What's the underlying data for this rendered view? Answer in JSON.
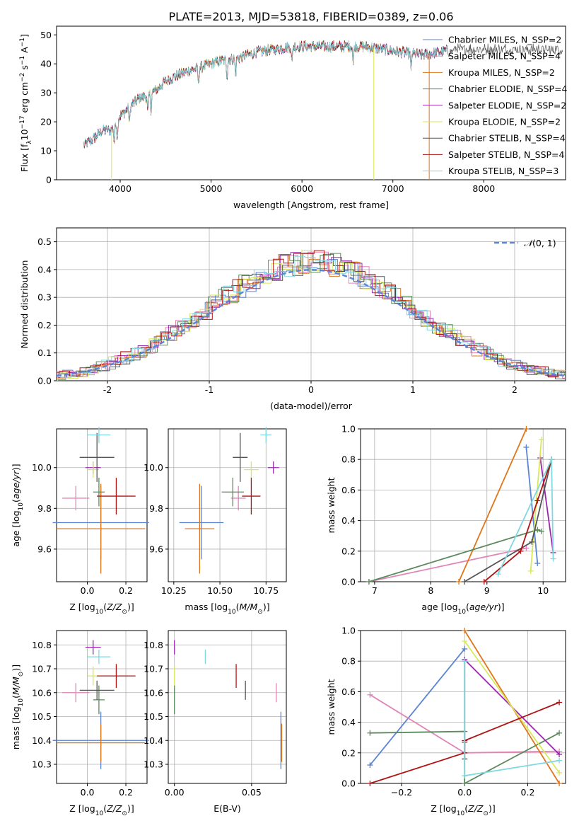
{
  "figure_title": "PLATE=2013, MJD=53818, FIBERID=0389, z=0.06",
  "colors": {
    "Chabrier MILES": "#5b84d4",
    "Salpeter MILES": "#e085b8",
    "Kroupa MILES": "#e0761a",
    "Chabrier ELODIE": "#5c8a5c",
    "Salpeter ELODIE": "#9b27b0",
    "Kroupa ELODIE": "#d8e85a",
    "Chabrier STELIB": "#555555",
    "Salpeter STELIB": "#b01515",
    "Kroupa STELIB": "#80d8e0"
  },
  "chart_data": [
    {
      "id": "spectrum",
      "type": "line",
      "xlabel": "wavelength [Angstrom, rest frame]",
      "ylabel": "Flux [f_λ10^-17 erg cm^-2 s^-1 A^-1]",
      "xlim": [
        3300,
        8900
      ],
      "ylim": [
        0,
        53
      ],
      "xticks": [
        4000,
        5000,
        6000,
        7000,
        8000
      ],
      "yticks": [
        0,
        10,
        20,
        30,
        40,
        50
      ],
      "grid": false,
      "legend_position": "right",
      "series": [
        {
          "name": "Chabrier MILES, N_SSP=2"
        },
        {
          "name": "Salpeter MILES, N_SSP=4"
        },
        {
          "name": "Kroupa MILES, N_SSP=2"
        },
        {
          "name": "Chabrier ELODIE, N_SSP=4"
        },
        {
          "name": "Salpeter ELODIE, N_SSP=2"
        },
        {
          "name": "Kroupa ELODIE, N_SSP=2"
        },
        {
          "name": "Chabrier STELIB, N_SSP=4"
        },
        {
          "name": "Salpeter STELIB, N_SSP=4"
        },
        {
          "name": "Kroupa STELIB, N_SSP=3"
        }
      ],
      "continuum": {
        "x": [
          3600,
          3700,
          3800,
          3900,
          4000,
          4100,
          4200,
          4300,
          4400,
          4500,
          4700,
          4900,
          5100,
          5300,
          5500,
          5700,
          5900,
          6100,
          6300,
          6500,
          6700,
          6900,
          7100,
          7300,
          7500,
          7700,
          7900,
          8200,
          8600,
          8870
        ],
        "y": [
          12,
          14,
          17,
          17,
          22,
          25,
          28,
          29,
          31,
          34,
          37,
          39,
          41,
          42,
          44,
          45,
          46,
          46,
          46,
          46,
          46,
          45,
          44,
          43,
          44,
          45,
          45,
          45,
          45,
          45
        ]
      },
      "model_ranges": [
        [
          3600,
          7600
        ],
        [
          3600,
          7600
        ],
        [
          3600,
          7400
        ],
        [
          3600,
          7600
        ],
        [
          3600,
          7600
        ],
        [
          3900,
          6800
        ],
        [
          3600,
          8870
        ],
        [
          3600,
          7600
        ],
        [
          3600,
          7600
        ]
      ]
    },
    {
      "id": "residuals",
      "type": "histogram",
      "xlabel": "(data-model)/error",
      "ylabel": "Normed distribution",
      "xlim": [
        -2.5,
        2.5
      ],
      "ylim": [
        0,
        0.55
      ],
      "xticks": [
        -2,
        -1,
        0,
        1,
        2
      ],
      "yticks": [
        0.0,
        0.1,
        0.2,
        0.3,
        0.4,
        0.5
      ],
      "grid": true,
      "legend_position": "top-right",
      "reference_curve": {
        "name": "N(0,1)",
        "mean": 0,
        "sigma": 1,
        "style": "dashed",
        "color": "#5b84d4"
      }
    },
    {
      "id": "age-vs-Z",
      "type": "errorbar",
      "xlabel": "Z [log10(Z/Z⊙)]",
      "ylabel": "age  [log10(age/yr)]",
      "xlim": [
        -0.16,
        0.31
      ],
      "ylim": [
        9.44,
        10.19
      ],
      "xticks": [
        0.0,
        0.2
      ],
      "yticks": [
        9.6,
        9.8,
        10.0
      ],
      "grid": true,
      "points": [
        {
          "x": 0.07,
          "xerr": 0.25,
          "y": 9.73,
          "yerr": 0.18
        },
        {
          "x": -0.06,
          "xerr": 0.07,
          "y": 9.85,
          "yerr": 0.06
        },
        {
          "x": 0.07,
          "xerr": 0.23,
          "y": 9.7,
          "yerr": 0.22
        },
        {
          "x": 0.06,
          "xerr": 0.03,
          "y": 9.88,
          "yerr": 0.07
        },
        {
          "x": 0.03,
          "xerr": 0.04,
          "y": 10.0,
          "yerr": 0.03
        },
        {
          "x": 0.03,
          "xerr": 0.03,
          "y": 9.99,
          "yerr": 0.04
        },
        {
          "x": 0.05,
          "xerr": 0.09,
          "y": 10.05,
          "yerr": 0.12
        },
        {
          "x": 0.15,
          "xerr": 0.1,
          "y": 9.86,
          "yerr": 0.09
        },
        {
          "x": 0.06,
          "xerr": 0.06,
          "y": 10.16,
          "yerr": 0.04
        }
      ]
    },
    {
      "id": "age-vs-mass",
      "type": "errorbar",
      "xlabel": "mass [log10(M/M⊙)]",
      "ylabel": "",
      "xlim": [
        10.22,
        10.86
      ],
      "ylim": [
        9.44,
        10.19
      ],
      "xticks": [
        10.25,
        10.5,
        10.75
      ],
      "yticks": [
        9.6,
        9.8,
        10.0
      ],
      "grid": true,
      "points": [
        {
          "x": 10.4,
          "xerr": 0.12,
          "y": 9.73,
          "yerr": 0.18
        },
        {
          "x": 10.6,
          "xerr": 0.04,
          "y": 9.85,
          "yerr": 0.06
        },
        {
          "x": 10.39,
          "xerr": 0.08,
          "y": 9.7,
          "yerr": 0.22
        },
        {
          "x": 10.57,
          "xerr": 0.06,
          "y": 9.88,
          "yerr": 0.07
        },
        {
          "x": 10.79,
          "xerr": 0.03,
          "y": 10.0,
          "yerr": 0.03
        },
        {
          "x": 10.67,
          "xerr": 0.04,
          "y": 9.99,
          "yerr": 0.04
        },
        {
          "x": 10.61,
          "xerr": 0.04,
          "y": 10.05,
          "yerr": 0.12
        },
        {
          "x": 10.67,
          "xerr": 0.05,
          "y": 9.86,
          "yerr": 0.09
        },
        {
          "x": 10.75,
          "xerr": 0.03,
          "y": 10.16,
          "yerr": 0.04
        }
      ]
    },
    {
      "id": "weight-vs-age",
      "type": "line",
      "xlabel": "age  [log10(age/yr)]",
      "ylabel": "mass weight",
      "xlim": [
        6.75,
        10.4
      ],
      "ylim": [
        0,
        1
      ],
      "xticks": [
        7,
        8,
        9,
        10
      ],
      "yticks": [
        0.0,
        0.2,
        0.4,
        0.6,
        0.8,
        1.0
      ],
      "grid": true,
      "series": [
        {
          "x": [
            9.7,
            9.9
          ],
          "y": [
            0.88,
            0.12
          ]
        },
        {
          "x": [
            6.9,
            9.7
          ],
          "y": [
            0.0,
            0.22
          ]
        },
        {
          "x": [
            8.5,
            9.7
          ],
          "y": [
            0.0,
            1.0
          ]
        },
        {
          "x": [
            6.9,
            9.9,
            9.97
          ],
          "y": [
            0.0,
            0.34,
            0.33
          ]
        },
        {
          "x": [
            9.95,
            10.18
          ],
          "y": [
            0.81,
            0.19
          ]
        },
        {
          "x": [
            9.78,
            9.97
          ],
          "y": [
            0.07,
            0.93
          ]
        },
        {
          "x": [
            8.6,
            9.8,
            10.15
          ],
          "y": [
            0.0,
            0.26,
            0.8
          ]
        },
        {
          "x": [
            8.95,
            9.6,
            9.9,
            10.15
          ],
          "y": [
            0.0,
            0.2,
            0.53,
            0.8
          ]
        },
        {
          "x": [
            9.2,
            10.15,
            10.18
          ],
          "y": [
            0.05,
            0.8,
            0.15
          ]
        }
      ]
    },
    {
      "id": "mass-vs-Z",
      "type": "errorbar",
      "xlabel": "Z [log10(Z/Z⊙)]",
      "ylabel": "mass [log10(M/M⊙)]",
      "xlim": [
        -0.16,
        0.31
      ],
      "ylim": [
        10.22,
        10.86
      ],
      "xticks": [
        0.0,
        0.2
      ],
      "yticks": [
        10.3,
        10.4,
        10.5,
        10.6,
        10.7,
        10.8
      ],
      "grid": true,
      "points": [
        {
          "x": 0.07,
          "xerr": 0.25,
          "y": 10.4,
          "yerr": 0.12
        },
        {
          "x": -0.06,
          "xerr": 0.07,
          "y": 10.6,
          "yerr": 0.04
        },
        {
          "x": 0.07,
          "xerr": 0.23,
          "y": 10.39,
          "yerr": 0.08
        },
        {
          "x": 0.06,
          "xerr": 0.03,
          "y": 10.57,
          "yerr": 0.06
        },
        {
          "x": 0.03,
          "xerr": 0.04,
          "y": 10.79,
          "yerr": 0.03
        },
        {
          "x": 0.03,
          "xerr": 0.03,
          "y": 10.67,
          "yerr": 0.04
        },
        {
          "x": 0.05,
          "xerr": 0.09,
          "y": 10.61,
          "yerr": 0.04
        },
        {
          "x": 0.15,
          "xerr": 0.1,
          "y": 10.67,
          "yerr": 0.05
        },
        {
          "x": 0.06,
          "xerr": 0.06,
          "y": 10.75,
          "yerr": 0.03
        }
      ]
    },
    {
      "id": "mass-vs-EBV",
      "type": "errorbar",
      "xlabel": "E(B-V)",
      "ylabel": "",
      "xlim": [
        -0.004,
        0.0725
      ],
      "ylim": [
        10.22,
        10.86
      ],
      "xticks": [
        0.0,
        0.05
      ],
      "yticks": [
        10.3,
        10.4,
        10.5,
        10.6,
        10.7,
        10.8
      ],
      "grid": true,
      "points": [
        {
          "x": 0.069,
          "xerr": 0,
          "y": 10.4,
          "yerr": 0.12
        },
        {
          "x": 0.066,
          "xerr": 0,
          "y": 10.6,
          "yerr": 0.04
        },
        {
          "x": 0.0695,
          "xerr": 0,
          "y": 10.39,
          "yerr": 0.08
        },
        {
          "x": 0.0,
          "xerr": 0,
          "y": 10.57,
          "yerr": 0.06
        },
        {
          "x": 0.0,
          "xerr": 0,
          "y": 10.79,
          "yerr": 0.03
        },
        {
          "x": 0.0,
          "xerr": 0,
          "y": 10.67,
          "yerr": 0.04
        },
        {
          "x": 0.046,
          "xerr": 0,
          "y": 10.61,
          "yerr": 0.04
        },
        {
          "x": 0.04,
          "xerr": 0,
          "y": 10.67,
          "yerr": 0.05
        },
        {
          "x": 0.02,
          "xerr": 0,
          "y": 10.75,
          "yerr": 0.03
        }
      ]
    },
    {
      "id": "weight-vs-Z",
      "type": "line",
      "xlabel": "Z [log10(Z/Z⊙)]",
      "ylabel": "mass weight",
      "xlim": [
        -0.33,
        0.32
      ],
      "ylim": [
        0,
        1
      ],
      "xticks": [
        -0.2,
        0.0,
        0.2
      ],
      "yticks": [
        0.0,
        0.2,
        0.4,
        0.6,
        0.8,
        1.0
      ],
      "grid": true,
      "series": [
        {
          "x": [
            -0.3,
            0.0
          ],
          "y": [
            0.12,
            0.88
          ]
        },
        {
          "x": [
            -0.3,
            0.0,
            0.3
          ],
          "y": [
            0.58,
            0.2,
            0.21
          ]
        },
        {
          "x": [
            0.0,
            0.3
          ],
          "y": [
            1.0,
            0.0
          ]
        },
        {
          "x": [
            -0.3,
            0.0,
            0.0,
            0.3
          ],
          "y": [
            0.33,
            0.34,
            0.0,
            0.33
          ]
        },
        {
          "x": [
            0.0,
            0.3
          ],
          "y": [
            0.81,
            0.19
          ]
        },
        {
          "x": [
            0.0,
            0.3
          ],
          "y": [
            0.93,
            0.07
          ]
        },
        {
          "x": [
            0.0,
            0.0,
            0.0
          ],
          "y": [
            0.27,
            0.16,
            0.8
          ]
        },
        {
          "x": [
            -0.3,
            0.0,
            0.0,
            0.3
          ],
          "y": [
            0.0,
            0.2,
            0.28,
            0.53
          ]
        },
        {
          "x": [
            0.0,
            0.0,
            0.3
          ],
          "y": [
            0.8,
            0.05,
            0.15
          ]
        }
      ]
    }
  ]
}
